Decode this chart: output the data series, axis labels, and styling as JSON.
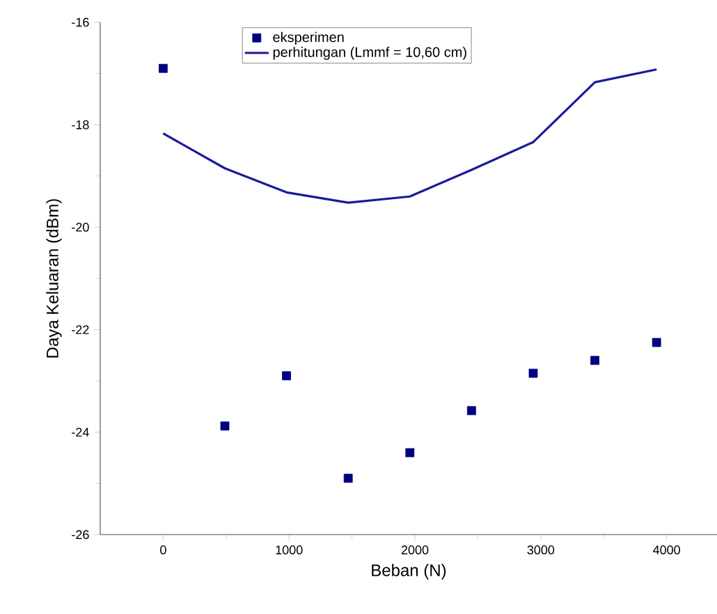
{
  "chart_data": {
    "type": "line",
    "xlabel": "Beban (N)",
    "ylabel": "Daya Keluaran (dBm)",
    "xlim": [
      -500,
      4400
    ],
    "ylim": [
      -26,
      -16
    ],
    "xticks": [
      0,
      1000,
      2000,
      3000,
      4000
    ],
    "yticks": [
      -26,
      -24,
      -22,
      -20,
      -18,
      -16
    ],
    "grid": false,
    "legend": "top",
    "x": [
      0,
      490,
      980,
      1470,
      1960,
      2450,
      2940,
      3430,
      3920
    ],
    "series": [
      {
        "name": "eksperimen",
        "type": "scatter",
        "marker": "square",
        "color": "#000080",
        "values": [
          -16.9,
          -23.88,
          -22.9,
          -24.9,
          -24.4,
          -23.58,
          -22.85,
          -22.6,
          -22.25
        ]
      },
      {
        "name": "perhitungan (Lmmf = 10,60 cm)",
        "marker": "none",
        "color": "#1a1a99",
        "line_style": "solid",
        "values": [
          -18.17,
          -18.85,
          -19.32,
          -19.52,
          -19.4,
          -18.88,
          -18.34,
          -17.17,
          -16.92
        ]
      }
    ]
  }
}
